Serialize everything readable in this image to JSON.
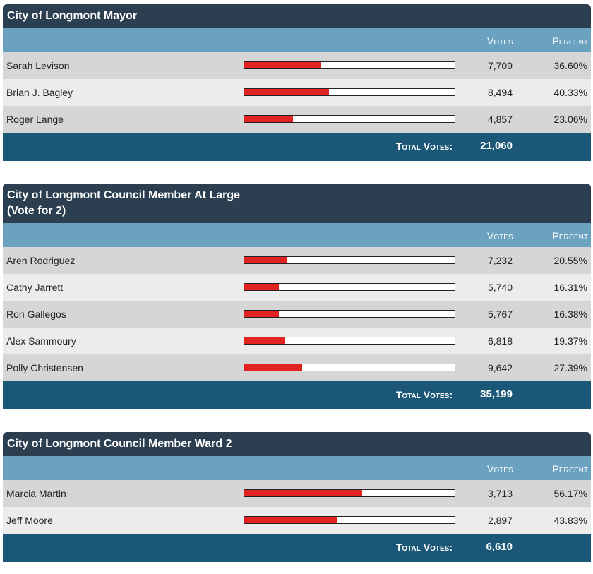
{
  "column_headers": {
    "votes": "Votes",
    "percent": "Percent"
  },
  "total_label": "Total Votes:",
  "bar_color": "#e32222",
  "races": [
    {
      "title": "City of Longmont Mayor",
      "total": "21,060",
      "candidates": [
        {
          "name": "Sarah Levison",
          "votes": "7,709",
          "percent": "36.60%",
          "share": 36.6
        },
        {
          "name": "Brian J. Bagley",
          "votes": "8,494",
          "percent": "40.33%",
          "share": 40.33
        },
        {
          "name": "Roger Lange",
          "votes": "4,857",
          "percent": "23.06%",
          "share": 23.06
        }
      ]
    },
    {
      "title": "City of Longmont Council Member At Large",
      "subtitle": "(Vote for 2)",
      "total": "35,199",
      "candidates": [
        {
          "name": "Aren Rodriguez",
          "votes": "7,232",
          "percent": "20.55%",
          "share": 20.55
        },
        {
          "name": "Cathy Jarrett",
          "votes": "5,740",
          "percent": "16.31%",
          "share": 16.31
        },
        {
          "name": "Ron Gallegos",
          "votes": "5,767",
          "percent": "16.38%",
          "share": 16.38
        },
        {
          "name": "Alex Sammoury",
          "votes": "6,818",
          "percent": "19.37%",
          "share": 19.37
        },
        {
          "name": "Polly Christensen",
          "votes": "9,642",
          "percent": "27.39%",
          "share": 27.39
        }
      ]
    },
    {
      "title": "City of Longmont Council Member Ward 2",
      "total": "6,610",
      "candidates": [
        {
          "name": "Marcia Martin",
          "votes": "3,713",
          "percent": "56.17%",
          "share": 56.17
        },
        {
          "name": "Jeff Moore",
          "votes": "2,897",
          "percent": "43.83%",
          "share": 43.83
        }
      ]
    }
  ]
}
